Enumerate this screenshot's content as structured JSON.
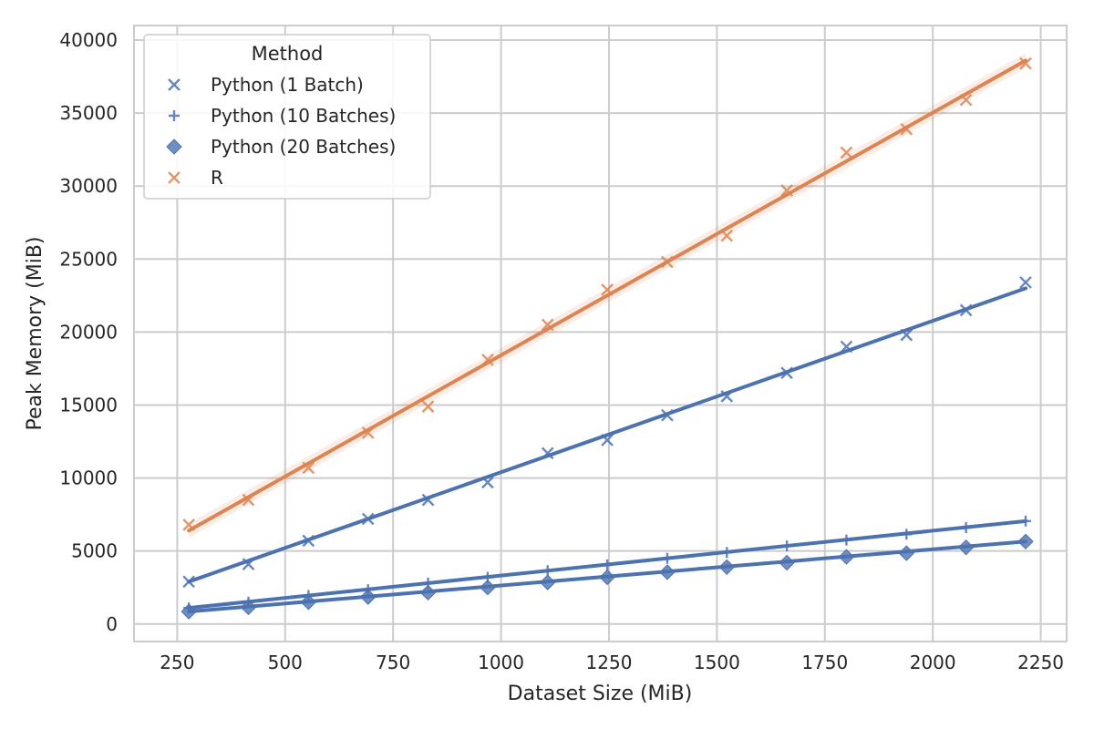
{
  "chart_data": {
    "type": "scatter",
    "title": "",
    "xlabel": "Dataset Size (MiB)",
    "ylabel": "Peak Memory (MiB)",
    "xlim": [
      150,
      2310
    ],
    "ylim": [
      -1200,
      41000
    ],
    "xticks": [
      250,
      500,
      750,
      1000,
      1250,
      1500,
      1750,
      2000,
      2250
    ],
    "yticks": [
      0,
      5000,
      10000,
      15000,
      20000,
      25000,
      30000,
      35000,
      40000
    ],
    "grid": true,
    "legend": {
      "title": "Method",
      "placement": "top-left",
      "entries": [
        {
          "label": "Python (1 Batch)",
          "marker": "x",
          "color": "#4c72b0"
        },
        {
          "label": "Python (10 Batches)",
          "marker": "+",
          "color": "#4c72b0"
        },
        {
          "label": "Python (20 Batches)",
          "marker": "diamond",
          "color": "#4c72b0"
        },
        {
          "label": "R",
          "marker": "x",
          "color": "#dd8452"
        }
      ]
    },
    "x": [
      277,
      415,
      554,
      692,
      831,
      969,
      1108,
      1246,
      1385,
      1523,
      1662,
      1800,
      1939,
      2077,
      2215
    ],
    "series": [
      {
        "name": "Python (1 Batch)",
        "marker": "x",
        "color": "#4c72b0",
        "values": [
          2900,
          4100,
          5700,
          7200,
          8500,
          9700,
          11700,
          12600,
          14300,
          15600,
          17200,
          19000,
          19800,
          21500,
          23400
        ],
        "fit": [
          2900,
          23000
        ]
      },
      {
        "name": "Python (10 Batches)",
        "marker": "+",
        "color": "#4c72b0",
        "values": [
          1100,
          1500,
          1950,
          2350,
          2800,
          3200,
          3650,
          4050,
          4500,
          4900,
          5350,
          5750,
          6150,
          6600,
          7050
        ],
        "fit": [
          1100,
          7050
        ]
      },
      {
        "name": "Python (20 Batches)",
        "marker": "diamond",
        "color": "#4c72b0",
        "values": [
          850,
          1150,
          1500,
          1850,
          2150,
          2500,
          2850,
          3200,
          3550,
          3900,
          4200,
          4600,
          4850,
          5250,
          5650
        ],
        "fit": [
          850,
          5650
        ]
      },
      {
        "name": "R",
        "marker": "x",
        "color": "#dd8452",
        "values": [
          6800,
          8500,
          10700,
          13100,
          14900,
          18100,
          20500,
          22900,
          24800,
          26600,
          29700,
          32300,
          33900,
          35900,
          38400
        ],
        "fit": [
          6400,
          38600
        ]
      }
    ]
  }
}
